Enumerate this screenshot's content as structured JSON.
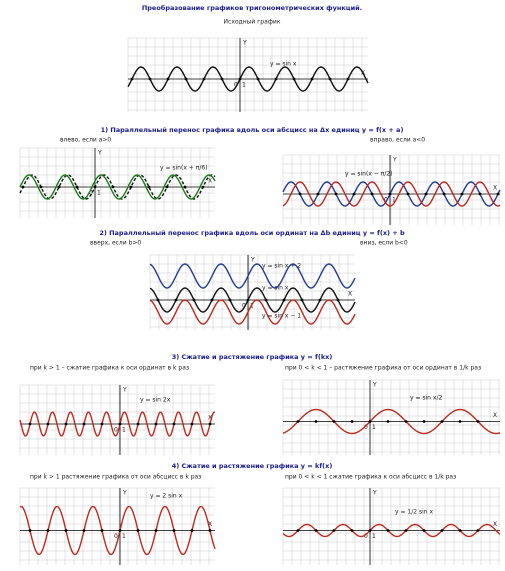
{
  "header": {
    "title": "Преобразование графиков тригонометрических функций.",
    "subtitle": "Исходный график"
  },
  "axis_labels": {
    "x": "X",
    "y": "Y",
    "zero": "0",
    "one": "1"
  },
  "original": {
    "label": "y = sin x"
  },
  "sections": [
    {
      "heading": "1) Параллельный перенос графика вдоль оси абсцисс на Δx единиц y = f(x + a)",
      "left_note": "влево, если a>0",
      "right_note": "вправо, если a<0",
      "graphs": [
        {
          "label": "y = sin(x + π/6)"
        },
        {
          "label": "y = sin(x − π/2)"
        }
      ]
    },
    {
      "heading": "2) Параллельный перенос графика вдоль оси ординат на Δb единиц y = f(x) + b",
      "left_note": "вверх, если b>0",
      "right_note": "вниз, если b<0",
      "graphs": [
        {
          "label": "y = sin x + 2",
          "label2": "y = sin x",
          "label3": "y = sin x − 1"
        }
      ]
    },
    {
      "heading": "3) Сжатие и растяжение графика y = f(kx)",
      "left_note": "при k > 1 – сжатие графика к оси ординат в k раз",
      "right_note": "при 0 < k < 1 – растяжение графика от оси ординат в 1/k раз",
      "graphs": [
        {
          "label": "y = sin 2x"
        },
        {
          "label": "y = sin x/2"
        }
      ]
    },
    {
      "heading": "4) Сжатие и растяжение графика y = kf(x)",
      "left_note": "при k > 1 растяжение графика от оси абсцисс в k раз",
      "right_note": "при 0 < k < 1 сжатие графика к оси абсцисс в 1/k раз",
      "graphs": [
        {
          "label": "y = 2 sin x"
        },
        {
          "label": "y = 1/2 sin x"
        }
      ]
    }
  ]
}
